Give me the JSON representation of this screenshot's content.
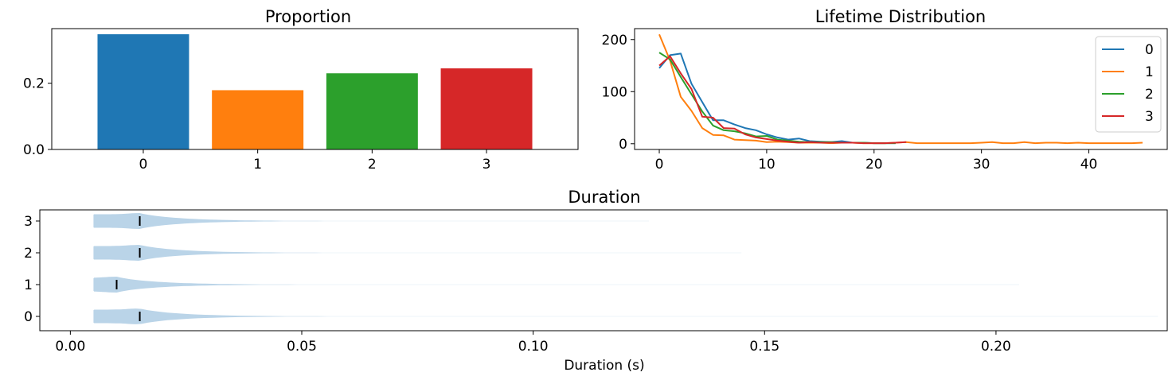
{
  "chart_data": [
    {
      "type": "bar",
      "title": "Proportion",
      "xlabel": "",
      "ylabel": "",
      "categories": [
        "0",
        "1",
        "2",
        "3"
      ],
      "values": [
        0.348,
        0.179,
        0.23,
        0.245
      ],
      "colors": [
        "#1f77b4",
        "#ff7f0e",
        "#2ca02c",
        "#d62728"
      ],
      "ylim": [
        0,
        0.365
      ],
      "yticks": [
        0.0,
        0.2
      ],
      "ytick_labels": [
        "0.0",
        "0.2"
      ],
      "xtick_labels": [
        "0",
        "1",
        "2",
        "3"
      ]
    },
    {
      "type": "line",
      "title": "Lifetime Distribution",
      "xlabel": "",
      "ylabel": "",
      "xlim": [
        -2.3,
        47.3
      ],
      "ylim": [
        -11,
        221
      ],
      "xticks": [
        0,
        10,
        20,
        30,
        40
      ],
      "xtick_labels": [
        "0",
        "10",
        "20",
        "30",
        "40"
      ],
      "yticks": [
        0,
        100,
        200
      ],
      "ytick_labels": [
        "0",
        "100",
        "200"
      ],
      "legend": "top-right",
      "series": [
        {
          "name": "0",
          "color": "#1f77b4",
          "x": [
            0,
            1,
            2,
            3,
            4,
            5,
            6,
            7,
            8,
            9,
            10,
            11,
            12,
            13,
            14,
            15,
            16,
            17,
            18,
            19,
            20,
            21,
            22
          ],
          "values": [
            145,
            170,
            173,
            115,
            80,
            45,
            45,
            37,
            30,
            26,
            18,
            12,
            8,
            10,
            5,
            4,
            3,
            5,
            2,
            2,
            1,
            1,
            1
          ]
        },
        {
          "name": "1",
          "color": "#ff7f0e",
          "x": [
            0,
            1,
            2,
            3,
            4,
            5,
            6,
            7,
            8,
            9,
            10,
            11,
            12,
            13,
            14,
            15,
            16,
            17,
            18,
            19,
            20,
            21,
            22,
            23,
            24,
            25,
            26,
            27,
            28,
            29,
            30,
            31,
            32,
            33,
            34,
            35,
            36,
            37,
            38,
            39,
            40,
            41,
            42,
            43,
            44,
            45
          ],
          "values": [
            210,
            160,
            90,
            63,
            30,
            17,
            16,
            8,
            7,
            6,
            3,
            4,
            3,
            2,
            2,
            2,
            1,
            2,
            2,
            1,
            1,
            1,
            2,
            3,
            1,
            1,
            1,
            1,
            1,
            1,
            2,
            3,
            1,
            1,
            3,
            1,
            2,
            2,
            1,
            2,
            1,
            1,
            1,
            1,
            1,
            2
          ]
        },
        {
          "name": "2",
          "color": "#2ca02c",
          "x": [
            0,
            1,
            2,
            3,
            4,
            5,
            6,
            7,
            8,
            9,
            10,
            11,
            12,
            13,
            14,
            15,
            16,
            17,
            18,
            19,
            20,
            21,
            22
          ],
          "values": [
            175,
            162,
            128,
            95,
            62,
            35,
            26,
            24,
            20,
            14,
            15,
            8,
            6,
            4,
            3,
            3,
            3,
            2,
            2,
            2,
            1,
            1,
            1
          ]
        },
        {
          "name": "3",
          "color": "#d62728",
          "x": [
            0,
            1,
            2,
            3,
            4,
            5,
            6,
            7,
            8,
            9,
            10,
            11,
            12,
            13,
            14,
            15,
            16,
            17,
            18,
            19,
            20,
            21,
            22,
            23
          ],
          "values": [
            150,
            168,
            135,
            105,
            52,
            50,
            30,
            29,
            18,
            12,
            9,
            6,
            4,
            2,
            3,
            2,
            2,
            2,
            2,
            1,
            1,
            1,
            2,
            3
          ]
        }
      ]
    },
    {
      "type": "violin",
      "title": "Duration",
      "xlabel": "Duration (s)",
      "ylabel": "",
      "orientation": "horizontal",
      "xlim": [
        -0.0066,
        0.237
      ],
      "ylim": [
        -0.45,
        3.35
      ],
      "xticks": [
        0.0,
        0.05,
        0.1,
        0.15,
        0.2
      ],
      "xtick_labels": [
        "0.00",
        "0.05",
        "0.10",
        "0.15",
        "0.20"
      ],
      "yticks": [
        0,
        1,
        2,
        3
      ],
      "ytick_labels": [
        "0",
        "1",
        "2",
        "3"
      ],
      "fill_color": "#bad4e8",
      "series": [
        {
          "name": "0",
          "min": 0.005,
          "max": 0.235,
          "median": 0.015
        },
        {
          "name": "1",
          "min": 0.005,
          "max": 0.205,
          "median": 0.01
        },
        {
          "name": "2",
          "min": 0.005,
          "max": 0.145,
          "median": 0.015
        },
        {
          "name": "3",
          "min": 0.005,
          "max": 0.125,
          "median": 0.015
        }
      ]
    }
  ]
}
